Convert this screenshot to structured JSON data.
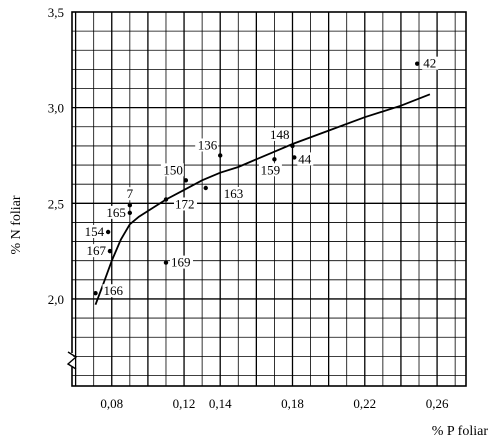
{
  "chart_data": {
    "type": "scatter",
    "title": "",
    "xlabel": "% P foliar",
    "ylabel": "% N foliar",
    "xlim": [
      0.058,
      0.276
    ],
    "ylim": [
      1.545,
      3.5
    ],
    "x_ticks": [
      0.08,
      0.12,
      0.14,
      0.18,
      0.22,
      0.26
    ],
    "x_tick_labels": [
      "0,08",
      "0,12",
      "0,14",
      "0,18",
      "0,22",
      "0,26"
    ],
    "y_ticks": [
      2.0,
      2.5,
      3.0,
      3.5
    ],
    "y_tick_labels": [
      "2,0",
      "2,5",
      "3,0",
      "3,5"
    ],
    "grid": true,
    "axis_break": "y",
    "points": [
      {
        "label": "42",
        "x": 0.249,
        "y": 3.23
      },
      {
        "label": "148",
        "x": 0.18,
        "y": 2.8
      },
      {
        "label": "44",
        "x": 0.181,
        "y": 2.74
      },
      {
        "label": "159",
        "x": 0.17,
        "y": 2.73
      },
      {
        "label": "136",
        "x": 0.14,
        "y": 2.75
      },
      {
        "label": "163",
        "x": 0.132,
        "y": 2.58
      },
      {
        "label": "150",
        "x": 0.121,
        "y": 2.62
      },
      {
        "label": "172",
        "x": 0.11,
        "y": 2.52
      },
      {
        "label": "7",
        "x": 0.09,
        "y": 2.49
      },
      {
        "label": "165",
        "x": 0.09,
        "y": 2.45
      },
      {
        "label": "154",
        "x": 0.078,
        "y": 2.35
      },
      {
        "label": "167",
        "x": 0.079,
        "y": 2.25
      },
      {
        "label": "169",
        "x": 0.11,
        "y": 2.19
      },
      {
        "label": "166",
        "x": 0.071,
        "y": 2.03
      }
    ],
    "fit_curve": [
      {
        "x": 0.071,
        "y": 1.97
      },
      {
        "x": 0.075,
        "y": 2.07
      },
      {
        "x": 0.08,
        "y": 2.2
      },
      {
        "x": 0.085,
        "y": 2.31
      },
      {
        "x": 0.09,
        "y": 2.39
      },
      {
        "x": 0.095,
        "y": 2.43
      },
      {
        "x": 0.1,
        "y": 2.46
      },
      {
        "x": 0.11,
        "y": 2.52
      },
      {
        "x": 0.12,
        "y": 2.57
      },
      {
        "x": 0.13,
        "y": 2.62
      },
      {
        "x": 0.14,
        "y": 2.66
      },
      {
        "x": 0.15,
        "y": 2.69
      },
      {
        "x": 0.16,
        "y": 2.73
      },
      {
        "x": 0.17,
        "y": 2.77
      },
      {
        "x": 0.18,
        "y": 2.81
      },
      {
        "x": 0.2,
        "y": 2.88
      },
      {
        "x": 0.22,
        "y": 2.95
      },
      {
        "x": 0.24,
        "y": 3.01
      },
      {
        "x": 0.256,
        "y": 3.07
      }
    ]
  }
}
